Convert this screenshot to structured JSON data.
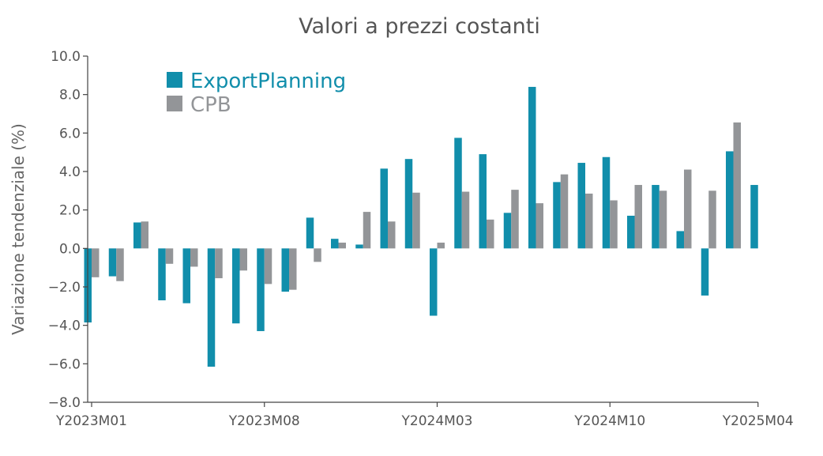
{
  "chart_data": {
    "type": "bar",
    "title": "Valori a prezzi costanti",
    "ylabel": "Variazione tendenziale (%)",
    "xlabel": "",
    "ylim": [
      -8.0,
      10.0
    ],
    "yticks": [
      "10.0",
      "8.0",
      "6.0",
      "4.0",
      "2.0",
      "0.0",
      "−2.0",
      "−4.0",
      "−6.0",
      "−8.0"
    ],
    "ytick_values": [
      10,
      8,
      6,
      4,
      2,
      0,
      -2,
      -4,
      -6,
      -8
    ],
    "xtick_labels": [
      "Y2023M01",
      "Y2023M08",
      "Y2024M03",
      "Y2024M10",
      "Y2025M04"
    ],
    "xtick_positions": [
      0,
      7,
      14,
      21,
      27
    ],
    "categories": [
      "Y2023M01",
      "Y2023M02",
      "Y2023M03",
      "Y2023M04",
      "Y2023M05",
      "Y2023M06",
      "Y2023M07",
      "Y2023M08",
      "Y2023M09",
      "Y2023M10",
      "Y2023M11",
      "Y2023M12",
      "Y2024M01",
      "Y2024M02",
      "Y2024M03",
      "Y2024M04",
      "Y2024M05",
      "Y2024M06",
      "Y2024M07",
      "Y2024M08",
      "Y2024M09",
      "Y2024M10",
      "Y2024M11",
      "Y2024M12",
      "Y2025M01",
      "Y2025M02",
      "Y2025M03",
      "Y2025M04"
    ],
    "legend_position": "top-left",
    "grid": false,
    "series": [
      {
        "name": "ExportPlanning",
        "color": "#118eab",
        "values": [
          -3.85,
          -1.45,
          1.35,
          -2.7,
          -2.85,
          -6.15,
          -3.9,
          -4.3,
          -2.25,
          1.6,
          0.5,
          0.2,
          4.15,
          4.65,
          -3.5,
          5.75,
          4.9,
          1.85,
          8.4,
          3.45,
          4.45,
          4.75,
          1.7,
          3.3,
          0.9,
          -2.45,
          5.05,
          3.3
        ]
      },
      {
        "name": "CPB",
        "color": "#939598",
        "values": [
          -1.5,
          -1.7,
          1.4,
          -0.8,
          -0.95,
          -1.55,
          -1.15,
          -1.85,
          -2.15,
          -0.7,
          0.3,
          1.9,
          1.4,
          2.9,
          0.3,
          2.95,
          1.5,
          3.05,
          2.35,
          3.85,
          2.85,
          2.5,
          3.3,
          3.0,
          4.1,
          3.0,
          6.55,
          null
        ]
      }
    ]
  }
}
